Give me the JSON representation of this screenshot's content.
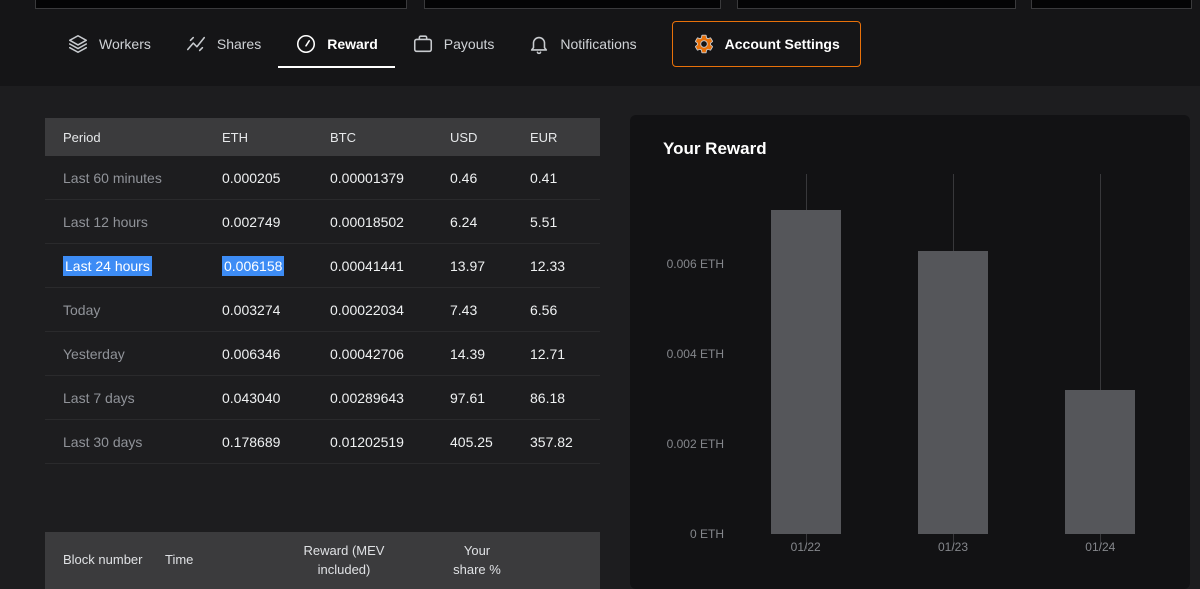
{
  "nav": {
    "tabs": [
      {
        "label": "Workers",
        "icon": "layers"
      },
      {
        "label": "Shares",
        "icon": "zigzag-chart"
      },
      {
        "label": "Reward",
        "icon": "gauge",
        "active": true
      },
      {
        "label": "Payouts",
        "icon": "briefcase"
      },
      {
        "label": "Notifications",
        "icon": "bell"
      },
      {
        "label": "Account Settings",
        "icon": "gear",
        "highlighted": true
      }
    ]
  },
  "reward_table": {
    "headers": [
      "Period",
      "ETH",
      "BTC",
      "USD",
      "EUR"
    ],
    "rows": [
      {
        "period": "Last 60 minutes",
        "eth": "0.000205",
        "btc": "0.00001379",
        "usd": "0.46",
        "eur": "0.41"
      },
      {
        "period": "Last 12 hours",
        "eth": "0.002749",
        "btc": "0.00018502",
        "usd": "6.24",
        "eur": "5.51"
      },
      {
        "period": "Last 24 hours",
        "eth": "0.006158",
        "btc": "0.00041441",
        "usd": "13.97",
        "eur": "12.33"
      },
      {
        "period": "Today",
        "eth": "0.003274",
        "btc": "0.00022034",
        "usd": "7.43",
        "eur": "6.56"
      },
      {
        "period": "Yesterday",
        "eth": "0.006346",
        "btc": "0.00042706",
        "usd": "14.39",
        "eur": "12.71"
      },
      {
        "period": "Last 7 days",
        "eth": "0.043040",
        "btc": "0.00289643",
        "usd": "97.61",
        "eur": "86.18"
      },
      {
        "period": "Last 30 days",
        "eth": "0.178689",
        "btc": "0.01202519",
        "usd": "405.25",
        "eur": "357.82"
      }
    ],
    "selected_cells": [
      "Last 24 hours",
      "0.006158"
    ]
  },
  "blocks_table": {
    "headers": [
      "Block number",
      "Time",
      "Reward (MEV included)",
      "Your share %"
    ]
  },
  "chart_data": {
    "type": "bar",
    "title": "Your Reward",
    "categories": [
      "01/22",
      "01/23",
      "01/24"
    ],
    "values": [
      0.0072,
      0.0063,
      0.0032
    ],
    "ylim": [
      0,
      0.008
    ],
    "yticks": [
      0,
      0.002,
      0.004,
      0.006
    ],
    "ytick_labels": [
      "0 ETH",
      "0.002 ETH",
      "0.004 ETH",
      "0.006 ETH"
    ],
    "ylabel": "ETH",
    "grid": "vertical",
    "legend": "none",
    "bar_color": "#55565a"
  },
  "colors": {
    "accent_orange": "#e8710a",
    "selection_blue": "#3d8cf5",
    "page_background": "#1d1d1f",
    "card_background": "#121214",
    "table_header_background": "#3b3b3d"
  }
}
